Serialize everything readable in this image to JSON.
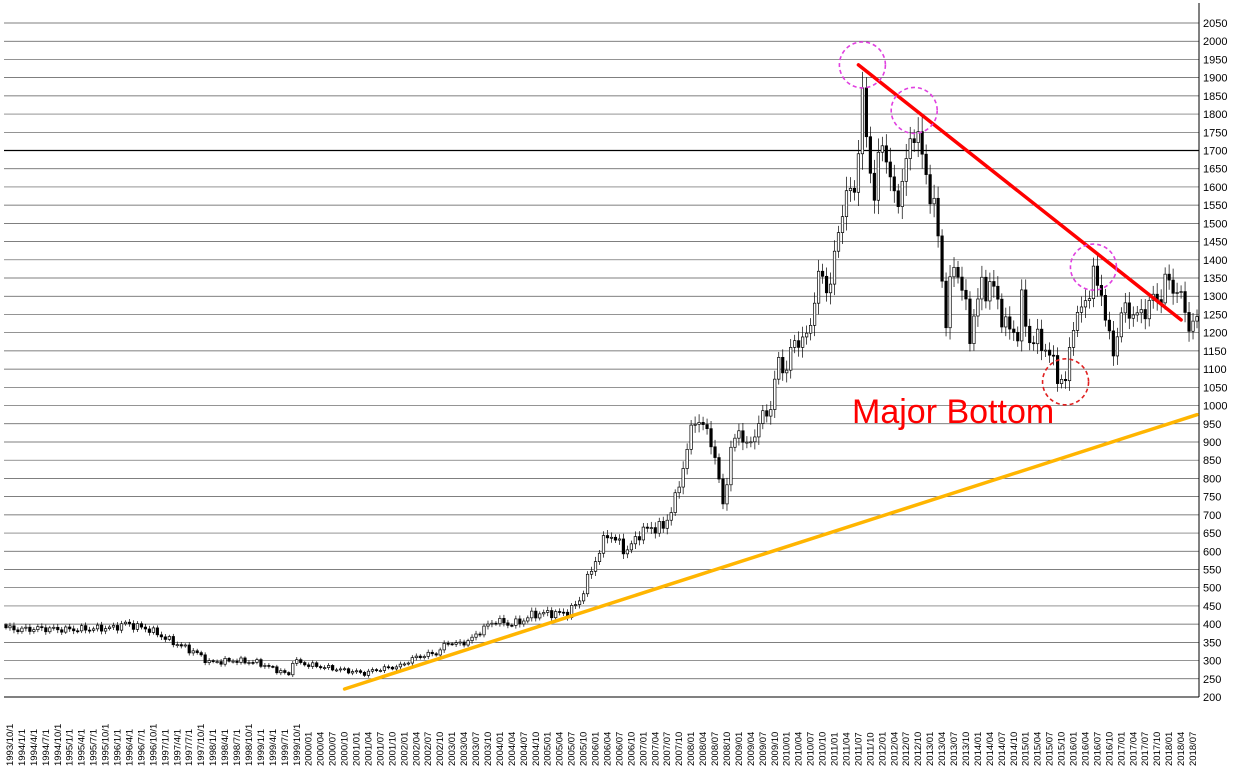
{
  "chart_data": {
    "type": "candlestick",
    "title": "",
    "xlabel": "",
    "ylabel": "",
    "ylim": [
      200,
      2050
    ],
    "y_ticks": [
      200,
      250,
      300,
      350,
      400,
      450,
      500,
      550,
      600,
      650,
      700,
      750,
      800,
      850,
      900,
      950,
      1000,
      1050,
      1100,
      1150,
      1200,
      1250,
      1300,
      1350,
      1400,
      1450,
      1500,
      1550,
      1600,
      1650,
      1700,
      1750,
      1800,
      1850,
      1900,
      1950,
      2000,
      2050
    ],
    "y_axis_side": "right",
    "grid": "horizontal",
    "highlighted_gridline": 1700,
    "x_tick_labels": [
      "1993/10/1",
      "1994/1/1",
      "1994/4/1",
      "1994/7/1",
      "1994/10/1",
      "1995/1/1",
      "1995/4/1",
      "1995/7/1",
      "1995/10/1",
      "1996/1/1",
      "1996/4/1",
      "1996/7/1",
      "1996/10/1",
      "1997/1/1",
      "1997/4/1",
      "1997/7/1",
      "1997/10/1",
      "1998/1/1",
      "1998/4/1",
      "1998/7/1",
      "1998/10/1",
      "1999/1/1",
      "1999/4/1",
      "1999/7/1",
      "1999/10/1",
      "2000/01",
      "2000/04",
      "2000/07",
      "2000/10",
      "2001/01",
      "2001/04",
      "2001/07",
      "2001/10",
      "2002/01",
      "2002/04",
      "2002/07",
      "2002/10",
      "2003/01",
      "2003/04",
      "2003/07",
      "2003/10",
      "2004/01",
      "2004/04",
      "2004/07",
      "2004/10",
      "2005/01",
      "2005/04",
      "2005/07",
      "2005/10",
      "2006/01",
      "2006/04",
      "2006/07",
      "2006/10",
      "2007/01",
      "2007/04",
      "2007/07",
      "2007/10",
      "2008/01",
      "2008/04",
      "2008/07",
      "2008/10",
      "2009/01",
      "2009/04",
      "2009/07",
      "2009/10",
      "2010/01",
      "2010/04",
      "2010/07",
      "2010/10",
      "2011/01",
      "2011/04",
      "2011/07",
      "2011/10",
      "2012/01",
      "2012/04",
      "2012/07",
      "2012/10",
      "2013/01",
      "2013/04",
      "2013/07",
      "2013/10",
      "2014/01",
      "2014/04",
      "2014/07",
      "2014/10",
      "2015/01",
      "2015/04",
      "2015/07",
      "2015/10",
      "2016/01",
      "2016/04",
      "2016/07",
      "2016/10",
      "2017/01",
      "2017/04",
      "2017/07",
      "2017/10",
      "2018/01",
      "2018/04",
      "2018/07"
    ],
    "price_path": [
      [
        "1993-10",
        390
      ],
      [
        "1994-01",
        385
      ],
      [
        "1994-07",
        388
      ],
      [
        "1995-01",
        385
      ],
      [
        "1995-07",
        387
      ],
      [
        "1996-01",
        390
      ],
      [
        "1996-04",
        402
      ],
      [
        "1996-10",
        385
      ],
      [
        "1997-04",
        350
      ],
      [
        "1997-10",
        320
      ],
      [
        "1998-01",
        295
      ],
      [
        "1998-07",
        300
      ],
      [
        "1999-01",
        295
      ],
      [
        "1999-07",
        270
      ],
      [
        "1999-09",
        260
      ],
      [
        "1999-10",
        300
      ],
      [
        "2000-01",
        290
      ],
      [
        "2000-07",
        280
      ],
      [
        "2001-01",
        270
      ],
      [
        "2001-04",
        265
      ],
      [
        "2001-07",
        275
      ],
      [
        "2001-10",
        280
      ],
      [
        "2002-01",
        285
      ],
      [
        "2002-04",
        305
      ],
      [
        "2002-07",
        315
      ],
      [
        "2002-10",
        320
      ],
      [
        "2003-01",
        350
      ],
      [
        "2003-04",
        345
      ],
      [
        "2003-07",
        360
      ],
      [
        "2003-10",
        390
      ],
      [
        "2004-01",
        410
      ],
      [
        "2004-04",
        400
      ],
      [
        "2004-07",
        405
      ],
      [
        "2004-10",
        425
      ],
      [
        "2005-01",
        430
      ],
      [
        "2005-04",
        430
      ],
      [
        "2005-07",
        430
      ],
      [
        "2005-10",
        465
      ],
      [
        "2006-01",
        550
      ],
      [
        "2006-05",
        650
      ],
      [
        "2006-07",
        630
      ],
      [
        "2006-10",
        600
      ],
      [
        "2007-01",
        650
      ],
      [
        "2007-04",
        665
      ],
      [
        "2007-07",
        665
      ],
      [
        "2007-10",
        740
      ],
      [
        "2008-01",
        880
      ],
      [
        "2008-03",
        970
      ],
      [
        "2008-07",
        910
      ],
      [
        "2008-10",
        730
      ],
      [
        "2008-12",
        870
      ],
      [
        "2009-02",
        940
      ],
      [
        "2009-04",
        880
      ],
      [
        "2009-07",
        950
      ],
      [
        "2009-10",
        1000
      ],
      [
        "2009-12",
        1120
      ],
      [
        "2010-02",
        1100
      ],
      [
        "2010-04",
        1180
      ],
      [
        "2010-07",
        1180
      ],
      [
        "2010-10",
        1350
      ],
      [
        "2011-01",
        1330
      ],
      [
        "2011-04",
        1550
      ],
      [
        "2011-07",
        1600
      ],
      [
        "2011-09",
        1830
      ],
      [
        "2011-12",
        1570
      ],
      [
        "2012-02",
        1740
      ],
      [
        "2012-05",
        1560
      ],
      [
        "2012-07",
        1610
      ],
      [
        "2012-10",
        1770
      ],
      [
        "2012-12",
        1680
      ],
      [
        "2013-02",
        1590
      ],
      [
        "2013-04",
        1470
      ],
      [
        "2013-06",
        1230
      ],
      [
        "2013-08",
        1400
      ],
      [
        "2013-10",
        1320
      ],
      [
        "2013-12",
        1200
      ],
      [
        "2014-03",
        1330
      ],
      [
        "2014-06",
        1320
      ],
      [
        "2014-09",
        1215
      ],
      [
        "2014-12",
        1200
      ],
      [
        "2015-01",
        1280
      ],
      [
        "2015-03",
        1180
      ],
      [
        "2015-06",
        1175
      ],
      [
        "2015-09",
        1115
      ],
      [
        "2015-11",
        1065
      ],
      [
        "2015-12",
        1060
      ],
      [
        "2016-02",
        1240
      ],
      [
        "2016-03",
        1235
      ],
      [
        "2016-06",
        1320
      ],
      [
        "2016-07",
        1350
      ],
      [
        "2016-09",
        1315
      ],
      [
        "2016-11",
        1175
      ],
      [
        "2016-12",
        1150
      ],
      [
        "2017-02",
        1250
      ],
      [
        "2017-04",
        1265
      ],
      [
        "2017-06",
        1240
      ],
      [
        "2017-09",
        1280
      ],
      [
        "2017-12",
        1305
      ],
      [
        "2018-01",
        1340
      ],
      [
        "2018-04",
        1320
      ],
      [
        "2018-07",
        1225
      ]
    ],
    "annotations": {
      "text_label": "Major Bottom",
      "text_color": "#ff0000",
      "resistance_line": {
        "color": "#ff0000",
        "from": [
          "2011-08",
          1935
        ],
        "to": [
          "2018-05",
          1235
        ]
      },
      "support_line": {
        "color": "#ffb500",
        "from": [
          "2000-11",
          222
        ],
        "to": [
          "2018-09",
          975
        ]
      },
      "circles": [
        {
          "color": "#e040e0",
          "at": [
            "2011-09",
            1935
          ],
          "style": "dashed"
        },
        {
          "color": "#e040e0",
          "at": [
            "2012-10",
            1810
          ],
          "style": "dashed"
        },
        {
          "color": "#e040e0",
          "at": [
            "2016-07",
            1380
          ],
          "style": "dashed"
        },
        {
          "color": "#e02020",
          "at": [
            "2015-12",
            1065
          ],
          "style": "dashed"
        }
      ]
    },
    "legend": "none"
  }
}
